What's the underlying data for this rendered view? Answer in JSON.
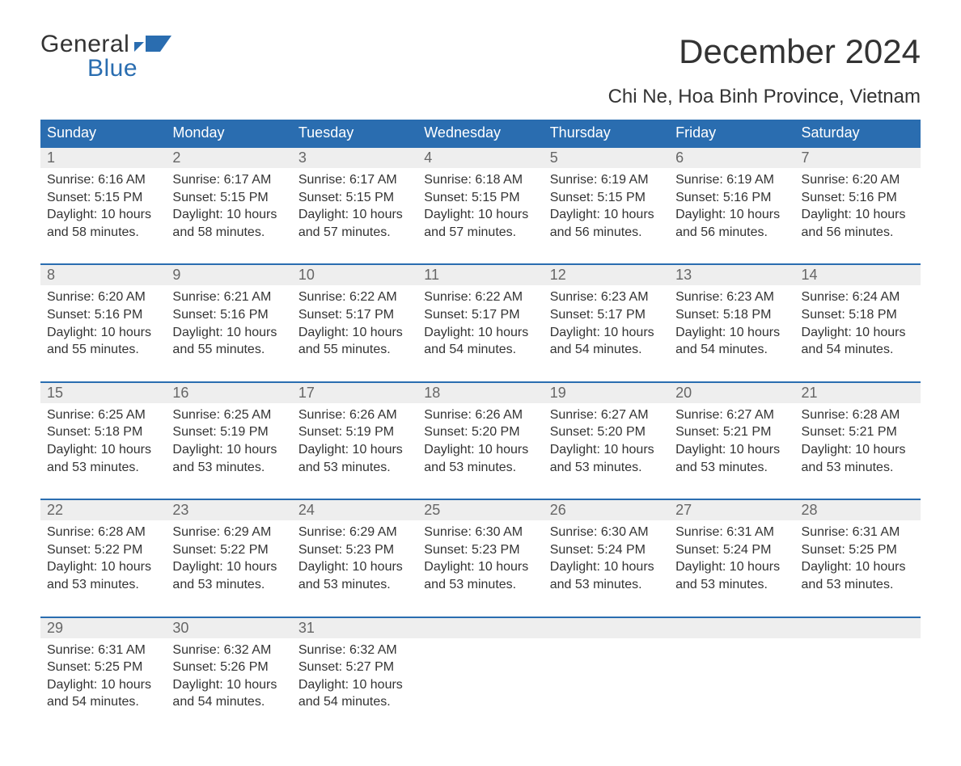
{
  "brand": {
    "top": "General",
    "bottom": "Blue",
    "flag_color": "#2a6db0"
  },
  "title": "December 2024",
  "subtitle": "Chi Ne, Hoa Binh Province, Vietnam",
  "colors": {
    "header_bg": "#2a6db0",
    "header_text": "#ffffff",
    "daynum_bg": "#eeeeee",
    "daynum_text": "#666666",
    "body_text": "#333333",
    "rule": "#2a6db0"
  },
  "day_headers": [
    "Sunday",
    "Monday",
    "Tuesday",
    "Wednesday",
    "Thursday",
    "Friday",
    "Saturday"
  ],
  "weeks": [
    [
      {
        "n": "1",
        "sunrise": "6:16 AM",
        "sunset": "5:15 PM",
        "daylight": "10 hours and 58 minutes."
      },
      {
        "n": "2",
        "sunrise": "6:17 AM",
        "sunset": "5:15 PM",
        "daylight": "10 hours and 58 minutes."
      },
      {
        "n": "3",
        "sunrise": "6:17 AM",
        "sunset": "5:15 PM",
        "daylight": "10 hours and 57 minutes."
      },
      {
        "n": "4",
        "sunrise": "6:18 AM",
        "sunset": "5:15 PM",
        "daylight": "10 hours and 57 minutes."
      },
      {
        "n": "5",
        "sunrise": "6:19 AM",
        "sunset": "5:15 PM",
        "daylight": "10 hours and 56 minutes."
      },
      {
        "n": "6",
        "sunrise": "6:19 AM",
        "sunset": "5:16 PM",
        "daylight": "10 hours and 56 minutes."
      },
      {
        "n": "7",
        "sunrise": "6:20 AM",
        "sunset": "5:16 PM",
        "daylight": "10 hours and 56 minutes."
      }
    ],
    [
      {
        "n": "8",
        "sunrise": "6:20 AM",
        "sunset": "5:16 PM",
        "daylight": "10 hours and 55 minutes."
      },
      {
        "n": "9",
        "sunrise": "6:21 AM",
        "sunset": "5:16 PM",
        "daylight": "10 hours and 55 minutes."
      },
      {
        "n": "10",
        "sunrise": "6:22 AM",
        "sunset": "5:17 PM",
        "daylight": "10 hours and 55 minutes."
      },
      {
        "n": "11",
        "sunrise": "6:22 AM",
        "sunset": "5:17 PM",
        "daylight": "10 hours and 54 minutes."
      },
      {
        "n": "12",
        "sunrise": "6:23 AM",
        "sunset": "5:17 PM",
        "daylight": "10 hours and 54 minutes."
      },
      {
        "n": "13",
        "sunrise": "6:23 AM",
        "sunset": "5:18 PM",
        "daylight": "10 hours and 54 minutes."
      },
      {
        "n": "14",
        "sunrise": "6:24 AM",
        "sunset": "5:18 PM",
        "daylight": "10 hours and 54 minutes."
      }
    ],
    [
      {
        "n": "15",
        "sunrise": "6:25 AM",
        "sunset": "5:18 PM",
        "daylight": "10 hours and 53 minutes."
      },
      {
        "n": "16",
        "sunrise": "6:25 AM",
        "sunset": "5:19 PM",
        "daylight": "10 hours and 53 minutes."
      },
      {
        "n": "17",
        "sunrise": "6:26 AM",
        "sunset": "5:19 PM",
        "daylight": "10 hours and 53 minutes."
      },
      {
        "n": "18",
        "sunrise": "6:26 AM",
        "sunset": "5:20 PM",
        "daylight": "10 hours and 53 minutes."
      },
      {
        "n": "19",
        "sunrise": "6:27 AM",
        "sunset": "5:20 PM",
        "daylight": "10 hours and 53 minutes."
      },
      {
        "n": "20",
        "sunrise": "6:27 AM",
        "sunset": "5:21 PM",
        "daylight": "10 hours and 53 minutes."
      },
      {
        "n": "21",
        "sunrise": "6:28 AM",
        "sunset": "5:21 PM",
        "daylight": "10 hours and 53 minutes."
      }
    ],
    [
      {
        "n": "22",
        "sunrise": "6:28 AM",
        "sunset": "5:22 PM",
        "daylight": "10 hours and 53 minutes."
      },
      {
        "n": "23",
        "sunrise": "6:29 AM",
        "sunset": "5:22 PM",
        "daylight": "10 hours and 53 minutes."
      },
      {
        "n": "24",
        "sunrise": "6:29 AM",
        "sunset": "5:23 PM",
        "daylight": "10 hours and 53 minutes."
      },
      {
        "n": "25",
        "sunrise": "6:30 AM",
        "sunset": "5:23 PM",
        "daylight": "10 hours and 53 minutes."
      },
      {
        "n": "26",
        "sunrise": "6:30 AM",
        "sunset": "5:24 PM",
        "daylight": "10 hours and 53 minutes."
      },
      {
        "n": "27",
        "sunrise": "6:31 AM",
        "sunset": "5:24 PM",
        "daylight": "10 hours and 53 minutes."
      },
      {
        "n": "28",
        "sunrise": "6:31 AM",
        "sunset": "5:25 PM",
        "daylight": "10 hours and 53 minutes."
      }
    ],
    [
      {
        "n": "29",
        "sunrise": "6:31 AM",
        "sunset": "5:25 PM",
        "daylight": "10 hours and 54 minutes."
      },
      {
        "n": "30",
        "sunrise": "6:32 AM",
        "sunset": "5:26 PM",
        "daylight": "10 hours and 54 minutes."
      },
      {
        "n": "31",
        "sunrise": "6:32 AM",
        "sunset": "5:27 PM",
        "daylight": "10 hours and 54 minutes."
      },
      null,
      null,
      null,
      null
    ]
  ],
  "labels": {
    "sunrise": "Sunrise:",
    "sunset": "Sunset:",
    "daylight": "Daylight:"
  }
}
